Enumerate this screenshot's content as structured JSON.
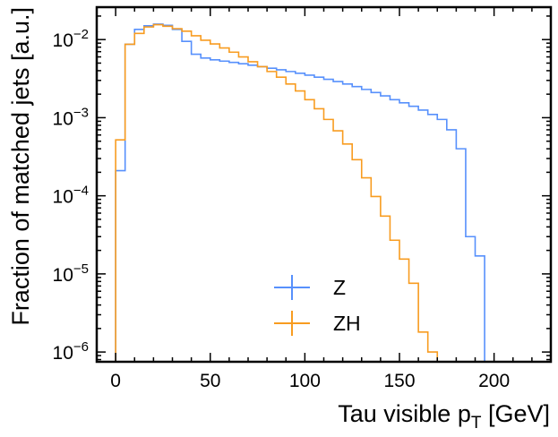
{
  "chart_data": {
    "type": "histogram-step",
    "title": "",
    "xlabel": "Tau visible p_T [GeV]",
    "xlabel_main": "Tau visible p",
    "xlabel_sub": "T",
    "xlabel_unit": " [GeV]",
    "ylabel": "Fraction of matched jets [a.u.]",
    "xlim": [
      -10,
      230
    ],
    "ylim": [
      7.5e-07,
      0.026
    ],
    "yscale": "log",
    "x_ticks": [
      0,
      50,
      100,
      150,
      200
    ],
    "x_tick_labels": [
      "0",
      "50",
      "100",
      "150",
      "200"
    ],
    "y_ticks": [
      {
        "value": 1e-06,
        "base": "10",
        "exp": "−6"
      },
      {
        "value": 1e-05,
        "base": "10",
        "exp": "−5"
      },
      {
        "value": 0.0001,
        "base": "10",
        "exp": "−4"
      },
      {
        "value": 0.001,
        "base": "10",
        "exp": "−3"
      },
      {
        "value": 0.01,
        "base": "10",
        "exp": "−2"
      }
    ],
    "bin_width": 5,
    "legend_position": "lower-center",
    "series": [
      {
        "name": "Z",
        "color": "#5790fc",
        "bin_edges_start": 0,
        "values": [
          0.00021,
          0.0087,
          0.0135,
          0.015,
          0.0158,
          0.0152,
          0.0135,
          0.0095,
          0.0065,
          0.0058,
          0.0055,
          0.0053,
          0.0051,
          0.0049,
          0.0047,
          0.0045,
          0.0043,
          0.0041,
          0.0039,
          0.0037,
          0.0035,
          0.0033,
          0.0031,
          0.0029,
          0.0027,
          0.0025,
          0.0023,
          0.0021,
          0.0019,
          0.0017,
          0.00155,
          0.0014,
          0.00125,
          0.0011,
          0.00095,
          0.0007,
          0.0004,
          3e-05,
          1.7e-05
        ]
      },
      {
        "name": "ZH",
        "color": "#f89c20",
        "bin_edges_start": 0,
        "values": [
          0.00052,
          0.0087,
          0.012,
          0.0145,
          0.0155,
          0.0148,
          0.0138,
          0.0128,
          0.0112,
          0.0098,
          0.0088,
          0.0078,
          0.0069,
          0.006,
          0.0052,
          0.0045,
          0.0039,
          0.0033,
          0.0027,
          0.0022,
          0.0017,
          0.0013,
          0.00095,
          0.00068,
          0.00046,
          0.00029,
          0.00017,
          9.8e-05,
          5.5e-05,
          2.7e-05,
          1.55e-05,
          7.6e-06,
          1.8e-06,
          1e-06,
          7.5e-07
        ]
      }
    ]
  }
}
